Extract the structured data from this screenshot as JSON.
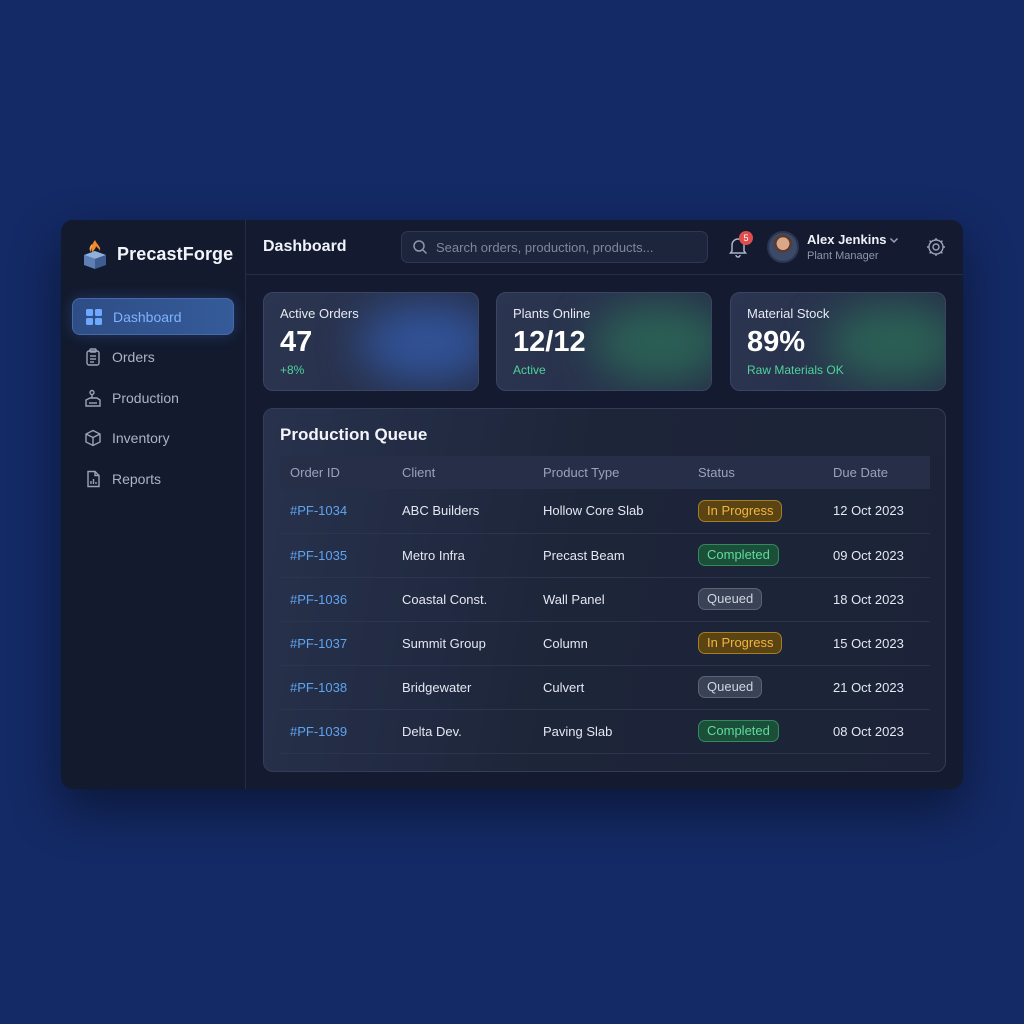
{
  "brand": {
    "name": "PrecastForge"
  },
  "sidebar": {
    "items": [
      {
        "label": "Dashboard",
        "icon": "grid-icon",
        "active": true
      },
      {
        "label": "Orders",
        "icon": "clipboard-icon",
        "active": false
      },
      {
        "label": "Production",
        "icon": "factory-icon",
        "active": false
      },
      {
        "label": "Inventory",
        "icon": "box-icon",
        "active": false
      },
      {
        "label": "Reports",
        "icon": "report-icon",
        "active": false
      }
    ]
  },
  "header": {
    "title": "Dashboard",
    "search_placeholder": "Search orders, production, products...",
    "notification_count": "5",
    "user": {
      "name": "Alex Jenkins",
      "role": "Plant Manager"
    }
  },
  "stats": [
    {
      "label": "Active Orders",
      "value": "47",
      "sub": "+8%",
      "accent": "#3a6fd8"
    },
    {
      "label": "Plants Online",
      "value": "12/12",
      "sub": "Active",
      "accent": "#2f8a5e"
    },
    {
      "label": "Material Stock",
      "value": "89%",
      "sub": "Raw Materials OK",
      "accent": "#2f8a5e"
    }
  ],
  "queue": {
    "title": "Production Queue",
    "columns": [
      "Order ID",
      "Client",
      "Product Type",
      "Status",
      "Due Date"
    ],
    "rows": [
      {
        "id": "#PF-1034",
        "client": "ABC Builders",
        "product": "Hollow Core Slab",
        "status": "In Progress",
        "due": "12 Oct 2023"
      },
      {
        "id": "#PF-1035",
        "client": "Metro Infra",
        "product": "Precast Beam",
        "status": "Completed",
        "due": "09 Oct 2023"
      },
      {
        "id": "#PF-1036",
        "client": "Coastal Const.",
        "product": "Wall Panel",
        "status": "Queued",
        "due": "18 Oct 2023"
      },
      {
        "id": "#PF-1037",
        "client": "Summit Group",
        "product": "Column",
        "status": "In Progress",
        "due": "15 Oct 2023"
      },
      {
        "id": "#PF-1038",
        "client": "Bridgewater",
        "product": "Culvert",
        "status": "Queued",
        "due": "21 Oct 2023"
      },
      {
        "id": "#PF-1039",
        "client": "Delta Dev.",
        "product": "Paving Slab",
        "status": "Completed",
        "due": "08 Oct 2023"
      }
    ]
  },
  "colors": {
    "background": "#142a66",
    "accent": "#5ea4f0",
    "in_progress": "#f2b540",
    "completed": "#5fdc9b",
    "queued": "#cfd5e2"
  }
}
